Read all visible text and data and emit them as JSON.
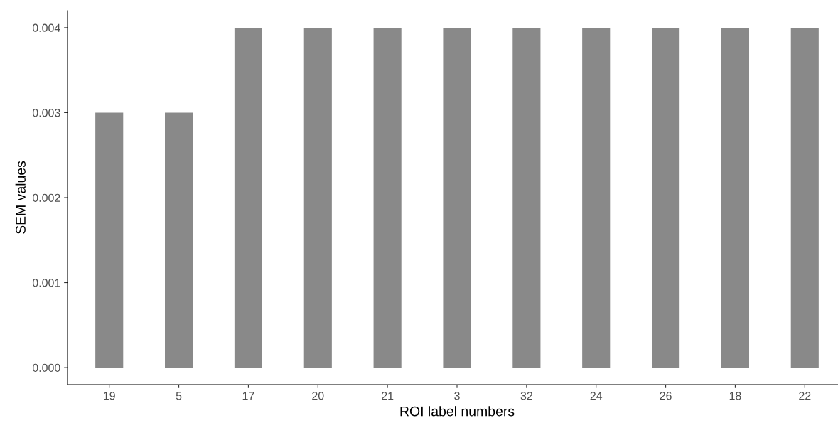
{
  "chart_data": {
    "type": "bar",
    "xlabel": "ROI label numbers",
    "ylabel": "SEM values",
    "categories": [
      "19",
      "5",
      "17",
      "20",
      "21",
      "3",
      "32",
      "24",
      "26",
      "18",
      "22"
    ],
    "values": [
      0.003,
      0.003,
      0.004,
      0.004,
      0.004,
      0.004,
      0.004,
      0.004,
      0.004,
      0.004,
      0.004
    ],
    "color": "#898989",
    "ylim": [
      -0.0002,
      0.0042
    ],
    "yticks": [
      {
        "value": 0,
        "label": "0.000"
      },
      {
        "value": 0.001,
        "label": "0.001"
      },
      {
        "value": 0.002,
        "label": "0.002"
      },
      {
        "value": 0.003,
        "label": "0.003"
      },
      {
        "value": 0.004,
        "label": "0.004"
      }
    ],
    "grid": false,
    "legend": false
  }
}
